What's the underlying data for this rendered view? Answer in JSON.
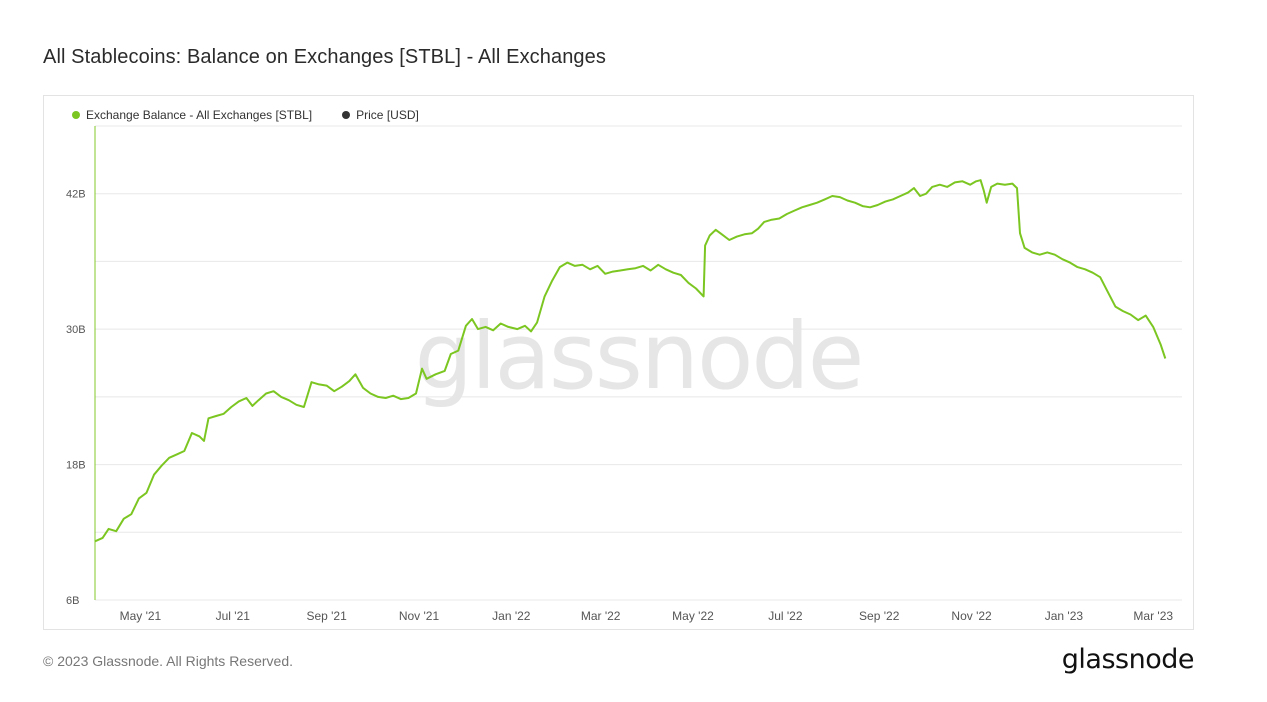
{
  "title": "All Stablecoins: Balance on Exchanges [STBL] - All Exchanges",
  "footer": "© 2023 Glassnode. All Rights Reserved.",
  "brand": "glassnode",
  "watermark": "glassnode",
  "colors": {
    "series": "#7cc622",
    "price": "#333333",
    "grid": "#e8e8e8",
    "axis_text": "#555555"
  },
  "chart_data": {
    "type": "line",
    "x_range": [
      "2021-04-01",
      "2023-03-20"
    ],
    "ylim": [
      6,
      48
    ],
    "y_ticks": [
      {
        "label": "6B",
        "value": 6
      },
      {
        "label": "18B",
        "value": 18
      },
      {
        "label": "30B",
        "value": 30
      },
      {
        "label": "42B",
        "value": 42
      }
    ],
    "x_ticks": [
      {
        "label": "May '21",
        "date": "2021-05-01"
      },
      {
        "label": "Jul '21",
        "date": "2021-07-01"
      },
      {
        "label": "Sep '21",
        "date": "2021-09-01"
      },
      {
        "label": "Nov '21",
        "date": "2021-11-01"
      },
      {
        "label": "Jan '22",
        "date": "2022-01-01"
      },
      {
        "label": "Mar '22",
        "date": "2022-03-01"
      },
      {
        "label": "May '22",
        "date": "2022-05-01"
      },
      {
        "label": "Jul '22",
        "date": "2022-07-01"
      },
      {
        "label": "Sep '22",
        "date": "2022-09-01"
      },
      {
        "label": "Nov '22",
        "date": "2022-11-01"
      },
      {
        "label": "Jan '23",
        "date": "2023-01-01"
      },
      {
        "label": "Mar '23",
        "date": "2023-03-01"
      }
    ],
    "grid": true,
    "legend": "top-left",
    "series": [
      {
        "name": "Exchange Balance - All Exchanges [STBL]",
        "unit": "B",
        "points": [
          [
            "2021-04-01",
            11.2
          ],
          [
            "2021-04-06",
            11.5
          ],
          [
            "2021-04-10",
            12.3
          ],
          [
            "2021-04-15",
            12.1
          ],
          [
            "2021-04-20",
            13.2
          ],
          [
            "2021-04-25",
            13.6
          ],
          [
            "2021-04-30",
            15.0
          ],
          [
            "2021-05-05",
            15.5
          ],
          [
            "2021-05-10",
            17.1
          ],
          [
            "2021-05-15",
            17.9
          ],
          [
            "2021-05-20",
            18.6
          ],
          [
            "2021-05-25",
            18.9
          ],
          [
            "2021-05-30",
            19.2
          ],
          [
            "2021-06-04",
            20.8
          ],
          [
            "2021-06-09",
            20.5
          ],
          [
            "2021-06-12",
            20.1
          ],
          [
            "2021-06-15",
            22.1
          ],
          [
            "2021-06-20",
            22.3
          ],
          [
            "2021-06-25",
            22.5
          ],
          [
            "2021-06-30",
            23.1
          ],
          [
            "2021-07-05",
            23.6
          ],
          [
            "2021-07-10",
            23.9
          ],
          [
            "2021-07-14",
            23.2
          ],
          [
            "2021-07-18",
            23.7
          ],
          [
            "2021-07-23",
            24.3
          ],
          [
            "2021-07-28",
            24.5
          ],
          [
            "2021-08-02",
            24.0
          ],
          [
            "2021-08-07",
            23.7
          ],
          [
            "2021-08-12",
            23.3
          ],
          [
            "2021-08-17",
            23.1
          ],
          [
            "2021-08-22",
            25.3
          ],
          [
            "2021-08-27",
            25.1
          ],
          [
            "2021-09-01",
            25.0
          ],
          [
            "2021-09-06",
            24.5
          ],
          [
            "2021-09-11",
            24.9
          ],
          [
            "2021-09-16",
            25.4
          ],
          [
            "2021-09-20",
            26.0
          ],
          [
            "2021-09-25",
            24.8
          ],
          [
            "2021-09-30",
            24.3
          ],
          [
            "2021-10-05",
            24.0
          ],
          [
            "2021-10-10",
            23.9
          ],
          [
            "2021-10-15",
            24.1
          ],
          [
            "2021-10-20",
            23.8
          ],
          [
            "2021-10-25",
            23.9
          ],
          [
            "2021-10-30",
            24.3
          ],
          [
            "2021-11-03",
            26.5
          ],
          [
            "2021-11-06",
            25.6
          ],
          [
            "2021-11-12",
            26.0
          ],
          [
            "2021-11-18",
            26.3
          ],
          [
            "2021-11-22",
            27.8
          ],
          [
            "2021-11-27",
            28.1
          ],
          [
            "2021-12-02",
            30.3
          ],
          [
            "2021-12-06",
            30.9
          ],
          [
            "2021-12-10",
            30.0
          ],
          [
            "2021-12-15",
            30.2
          ],
          [
            "2021-12-20",
            29.9
          ],
          [
            "2021-12-25",
            30.5
          ],
          [
            "2021-12-30",
            30.2
          ],
          [
            "2022-01-05",
            30.0
          ],
          [
            "2022-01-10",
            30.3
          ],
          [
            "2022-01-14",
            29.8
          ],
          [
            "2022-01-18",
            30.6
          ],
          [
            "2022-01-23",
            32.9
          ],
          [
            "2022-01-28",
            34.3
          ],
          [
            "2022-02-02",
            35.5
          ],
          [
            "2022-02-07",
            35.9
          ],
          [
            "2022-02-12",
            35.6
          ],
          [
            "2022-02-17",
            35.7
          ],
          [
            "2022-02-22",
            35.3
          ],
          [
            "2022-02-27",
            35.6
          ],
          [
            "2022-03-04",
            34.9
          ],
          [
            "2022-03-09",
            35.1
          ],
          [
            "2022-03-14",
            35.2
          ],
          [
            "2022-03-19",
            35.3
          ],
          [
            "2022-03-24",
            35.4
          ],
          [
            "2022-03-29",
            35.6
          ],
          [
            "2022-04-03",
            35.2
          ],
          [
            "2022-04-08",
            35.7
          ],
          [
            "2022-04-13",
            35.3
          ],
          [
            "2022-04-18",
            35.0
          ],
          [
            "2022-04-23",
            34.8
          ],
          [
            "2022-04-28",
            34.1
          ],
          [
            "2022-05-03",
            33.6
          ],
          [
            "2022-05-08",
            32.9
          ],
          [
            "2022-05-09",
            37.4
          ],
          [
            "2022-05-12",
            38.3
          ],
          [
            "2022-05-16",
            38.8
          ],
          [
            "2022-05-20",
            38.4
          ],
          [
            "2022-05-25",
            37.9
          ],
          [
            "2022-05-30",
            38.2
          ],
          [
            "2022-06-04",
            38.4
          ],
          [
            "2022-06-09",
            38.5
          ],
          [
            "2022-06-13",
            38.9
          ],
          [
            "2022-06-17",
            39.5
          ],
          [
            "2022-06-22",
            39.7
          ],
          [
            "2022-06-27",
            39.8
          ],
          [
            "2022-07-02",
            40.2
          ],
          [
            "2022-07-07",
            40.5
          ],
          [
            "2022-07-12",
            40.8
          ],
          [
            "2022-07-17",
            41.0
          ],
          [
            "2022-07-22",
            41.2
          ],
          [
            "2022-07-27",
            41.5
          ],
          [
            "2022-08-01",
            41.8
          ],
          [
            "2022-08-06",
            41.7
          ],
          [
            "2022-08-11",
            41.4
          ],
          [
            "2022-08-16",
            41.2
          ],
          [
            "2022-08-21",
            40.9
          ],
          [
            "2022-08-26",
            40.8
          ],
          [
            "2022-08-31",
            41.0
          ],
          [
            "2022-09-05",
            41.3
          ],
          [
            "2022-09-10",
            41.5
          ],
          [
            "2022-09-15",
            41.8
          ],
          [
            "2022-09-20",
            42.1
          ],
          [
            "2022-09-24",
            42.5
          ],
          [
            "2022-09-28",
            41.8
          ],
          [
            "2022-10-02",
            42.0
          ],
          [
            "2022-10-06",
            42.6
          ],
          [
            "2022-10-11",
            42.8
          ],
          [
            "2022-10-16",
            42.6
          ],
          [
            "2022-10-21",
            43.0
          ],
          [
            "2022-10-26",
            43.1
          ],
          [
            "2022-10-31",
            42.8
          ],
          [
            "2022-11-04",
            43.1
          ],
          [
            "2022-11-07",
            43.2
          ],
          [
            "2022-11-09",
            42.3
          ],
          [
            "2022-11-11",
            41.2
          ],
          [
            "2022-11-14",
            42.6
          ],
          [
            "2022-11-18",
            42.9
          ],
          [
            "2022-11-23",
            42.8
          ],
          [
            "2022-11-28",
            42.9
          ],
          [
            "2022-12-01",
            42.5
          ],
          [
            "2022-12-03",
            38.5
          ],
          [
            "2022-12-06",
            37.2
          ],
          [
            "2022-12-11",
            36.8
          ],
          [
            "2022-12-16",
            36.6
          ],
          [
            "2022-12-21",
            36.8
          ],
          [
            "2022-12-26",
            36.6
          ],
          [
            "2022-12-31",
            36.2
          ],
          [
            "2023-01-05",
            35.9
          ],
          [
            "2023-01-10",
            35.5
          ],
          [
            "2023-01-15",
            35.3
          ],
          [
            "2023-01-20",
            35.0
          ],
          [
            "2023-01-25",
            34.6
          ],
          [
            "2023-01-30",
            33.3
          ],
          [
            "2023-02-04",
            32.0
          ],
          [
            "2023-02-09",
            31.6
          ],
          [
            "2023-02-14",
            31.3
          ],
          [
            "2023-02-19",
            30.8
          ],
          [
            "2023-02-24",
            31.2
          ],
          [
            "2023-03-01",
            30.2
          ],
          [
            "2023-03-06",
            28.6
          ],
          [
            "2023-03-09",
            27.4
          ]
        ]
      },
      {
        "name": "Price [USD]",
        "points": []
      }
    ]
  }
}
